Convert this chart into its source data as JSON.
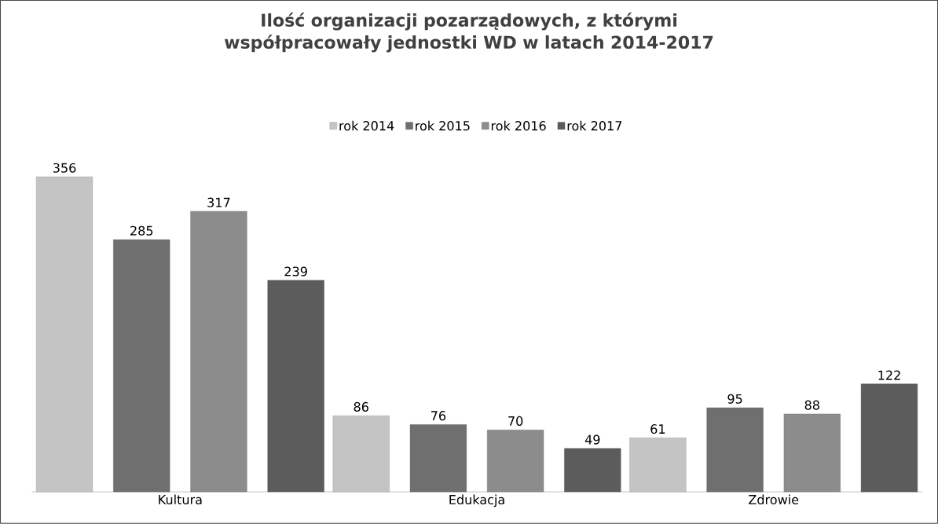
{
  "chart_data": {
    "type": "bar",
    "title": "Ilość organizacji pozarządowych, z którymi współpracowały jednostki WD w latach 2014-2017",
    "categories": [
      "Kultura",
      "Edukacja",
      "Zdrowie"
    ],
    "series": [
      {
        "name": "rok 2014",
        "color": "#c4c4c4",
        "values": [
          356,
          86,
          61
        ]
      },
      {
        "name": "rok 2015",
        "color": "#6f6f6f",
        "values": [
          285,
          76,
          95
        ]
      },
      {
        "name": "rok 2016",
        "color": "#8c8c8c",
        "values": [
          317,
          70,
          88
        ]
      },
      {
        "name": "rok 2017",
        "color": "#5c5c5c",
        "values": [
          239,
          49,
          122
        ]
      }
    ],
    "data_labels": true,
    "legend": "top"
  }
}
